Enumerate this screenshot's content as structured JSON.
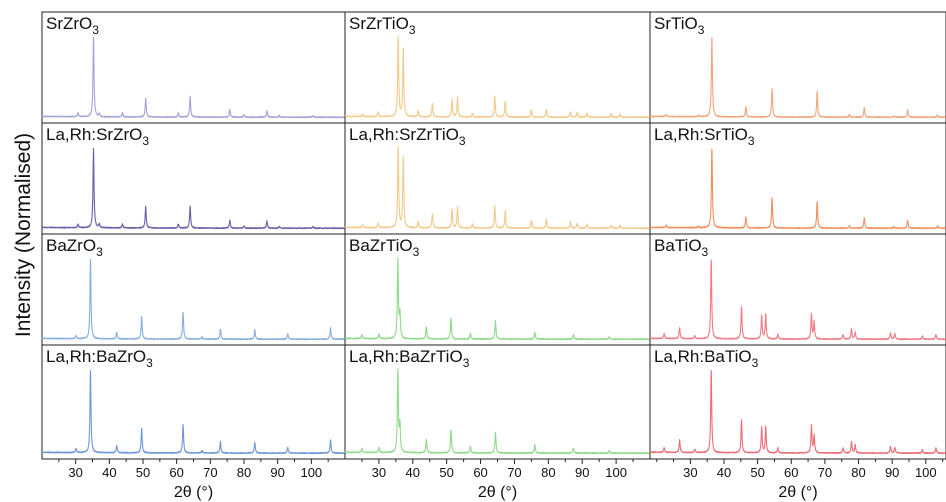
{
  "chart_data": {
    "type": "line",
    "ylabel": "Intensity (Normalised)",
    "xlabel": "2θ (°)",
    "xlim": [
      20,
      110
    ],
    "xticks": [
      30,
      40,
      50,
      60,
      70,
      80,
      90,
      100
    ],
    "grid": false,
    "columns": [
      {
        "xlabel": "2θ (°)",
        "xlim": [
          20,
          110
        ],
        "panels": [
          {
            "label": "SrZrO3",
            "label_base": "SrZrO",
            "label_sub": "3",
            "color": "#a3a3d6",
            "peaks": [
              [
                30.7,
                0.05
              ],
              [
                35.3,
                1.0
              ],
              [
                37.0,
                0.04
              ],
              [
                43.9,
                0.05
              ],
              [
                50.8,
                0.23
              ],
              [
                60.5,
                0.05
              ],
              [
                64.0,
                0.26
              ],
              [
                75.8,
                0.1
              ],
              [
                80.0,
                0.03
              ],
              [
                86.8,
                0.08
              ],
              [
                90.5,
                0.02
              ],
              [
                100.5,
                0.02
              ]
            ]
          },
          {
            "label": "La,Rh:SrZrO3",
            "label_base": "La,Rh:SrZrO",
            "label_sub": "3",
            "color": "#6a5fa8",
            "peaks": [
              [
                30.7,
                0.05
              ],
              [
                35.3,
                1.0
              ],
              [
                37.0,
                0.05
              ],
              [
                43.9,
                0.05
              ],
              [
                50.8,
                0.27
              ],
              [
                60.5,
                0.05
              ],
              [
                64.0,
                0.28
              ],
              [
                75.8,
                0.1
              ],
              [
                80.0,
                0.03
              ],
              [
                86.8,
                0.09
              ],
              [
                90.5,
                0.02
              ],
              [
                100.5,
                0.02
              ]
            ]
          },
          {
            "label": "BaZrO3",
            "label_base": "BaZrO",
            "label_sub": "3",
            "color": "#88aee0",
            "peaks": [
              [
                30.1,
                0.04
              ],
              [
                34.4,
                1.0
              ],
              [
                42.2,
                0.08
              ],
              [
                49.6,
                0.28
              ],
              [
                61.9,
                0.34
              ],
              [
                67.5,
                0.03
              ],
              [
                73.0,
                0.13
              ],
              [
                83.2,
                0.12
              ],
              [
                93.0,
                0.07
              ],
              [
                105.7,
                0.14
              ]
            ]
          },
          {
            "label": "La,Rh:BaZrO3",
            "label_base": "La,Rh:BaZrO",
            "label_sub": "3",
            "color": "#6f96dc",
            "peaks": [
              [
                30.1,
                0.05
              ],
              [
                34.4,
                1.0
              ],
              [
                42.2,
                0.09
              ],
              [
                49.6,
                0.3
              ],
              [
                61.9,
                0.35
              ],
              [
                67.5,
                0.03
              ],
              [
                73.0,
                0.14
              ],
              [
                83.2,
                0.13
              ],
              [
                93.0,
                0.07
              ],
              [
                105.7,
                0.16
              ]
            ]
          }
        ]
      },
      {
        "xlabel": "2θ (°)",
        "xlim": [
          20,
          110
        ],
        "panels": [
          {
            "label": "SrZrTiO3",
            "label_base": "SrZrTiO",
            "label_sub": "3",
            "color": "#f2c98a",
            "peaks": [
              [
                25.2,
                0.03
              ],
              [
                29.8,
                0.06
              ],
              [
                35.7,
                1.0
              ],
              [
                37.2,
                0.85
              ],
              [
                41.6,
                0.08
              ],
              [
                45.8,
                0.17
              ],
              [
                51.6,
                0.22
              ],
              [
                53.2,
                0.25
              ],
              [
                57.6,
                0.05
              ],
              [
                64.2,
                0.26
              ],
              [
                67.3,
                0.2
              ],
              [
                75.0,
                0.09
              ],
              [
                79.4,
                0.1
              ],
              [
                86.5,
                0.07
              ],
              [
                88.5,
                0.06
              ],
              [
                91.4,
                0.05
              ],
              [
                98.6,
                0.04
              ],
              [
                101.2,
                0.04
              ]
            ]
          },
          {
            "label": "La,Rh:SrZrTiO3",
            "label_base": "La,Rh:SrZrTiO",
            "label_sub": "3",
            "color": "#f2c98a",
            "peaks": [
              [
                25.2,
                0.04
              ],
              [
                29.8,
                0.06
              ],
              [
                35.7,
                1.0
              ],
              [
                37.2,
                0.88
              ],
              [
                41.6,
                0.08
              ],
              [
                45.8,
                0.18
              ],
              [
                51.6,
                0.24
              ],
              [
                53.2,
                0.26
              ],
              [
                57.6,
                0.05
              ],
              [
                64.2,
                0.28
              ],
              [
                67.3,
                0.22
              ],
              [
                75.0,
                0.1
              ],
              [
                79.4,
                0.11
              ],
              [
                86.5,
                0.08
              ],
              [
                88.5,
                0.06
              ],
              [
                91.4,
                0.05
              ],
              [
                98.6,
                0.04
              ],
              [
                101.2,
                0.04
              ]
            ]
          },
          {
            "label": "BaZrTiO3",
            "label_base": "BaZrTiO",
            "label_sub": "3",
            "color": "#8fd98a",
            "peaks": [
              [
                25.0,
                0.05
              ],
              [
                30.0,
                0.06
              ],
              [
                35.6,
                1.0
              ],
              [
                36.2,
                0.3
              ],
              [
                44.0,
                0.15
              ],
              [
                51.3,
                0.26
              ],
              [
                57.0,
                0.07
              ],
              [
                64.4,
                0.23
              ],
              [
                76.0,
                0.09
              ],
              [
                87.4,
                0.06
              ],
              [
                98.0,
                0.03
              ]
            ]
          },
          {
            "label": "La,Rh:BaZrTiO3",
            "label_base": "La,Rh:BaZrTiO",
            "label_sub": "3",
            "color": "#8fd98a",
            "peaks": [
              [
                25.0,
                0.05
              ],
              [
                30.0,
                0.06
              ],
              [
                35.6,
                1.0
              ],
              [
                36.2,
                0.32
              ],
              [
                44.0,
                0.16
              ],
              [
                51.3,
                0.28
              ],
              [
                57.0,
                0.08
              ],
              [
                64.4,
                0.25
              ],
              [
                76.0,
                0.1
              ],
              [
                87.4,
                0.06
              ],
              [
                98.0,
                0.03
              ]
            ]
          }
        ]
      },
      {
        "xlabel": "2θ (°)",
        "xlim": [
          18,
          106
        ],
        "panels": [
          {
            "label": "SrTiO3",
            "label_base": "SrTiO",
            "label_sub": "3",
            "color": "#f2a47c",
            "peaks": [
              [
                22.8,
                0.03
              ],
              [
                32.4,
                0.02
              ],
              [
                36.4,
                1.0
              ],
              [
                46.5,
                0.13
              ],
              [
                54.3,
                0.36
              ],
              [
                67.7,
                0.32
              ],
              [
                77.3,
                0.03
              ],
              [
                81.7,
                0.12
              ],
              [
                90.5,
                0.02
              ],
              [
                94.6,
                0.09
              ],
              [
                103.5,
                0.03
              ]
            ]
          },
          {
            "label": "La,Rh:SrTiO3",
            "label_base": "La,Rh:SrTiO",
            "label_sub": "3",
            "color": "#f08f5c",
            "peaks": [
              [
                22.8,
                0.03
              ],
              [
                32.4,
                0.02
              ],
              [
                36.4,
                1.0
              ],
              [
                46.5,
                0.14
              ],
              [
                54.3,
                0.38
              ],
              [
                67.7,
                0.33
              ],
              [
                77.3,
                0.03
              ],
              [
                81.7,
                0.13
              ],
              [
                90.5,
                0.02
              ],
              [
                94.6,
                0.1
              ],
              [
                103.5,
                0.03
              ]
            ]
          },
          {
            "label": "BaTiO3",
            "label_base": "BaTiO",
            "label_sub": "3",
            "color": "#ef7b85",
            "peaks": [
              [
                22.2,
                0.06
              ],
              [
                26.8,
                0.14
              ],
              [
                31.3,
                0.04
              ],
              [
                36.2,
                1.0
              ],
              [
                45.2,
                0.41
              ],
              [
                51.2,
                0.3
              ],
              [
                52.4,
                0.31
              ],
              [
                56.0,
                0.06
              ],
              [
                66.0,
                0.32
              ],
              [
                66.8,
                0.22
              ],
              [
                75.4,
                0.06
              ],
              [
                77.9,
                0.13
              ],
              [
                79.0,
                0.09
              ],
              [
                89.5,
                0.08
              ],
              [
                90.8,
                0.07
              ],
              [
                99.0,
                0.04
              ],
              [
                103.0,
                0.06
              ]
            ]
          },
          {
            "label": "La,Rh:BaTiO3",
            "label_base": "La,Rh:BaTiO",
            "label_sub": "3",
            "color": "#ea6e76",
            "peaks": [
              [
                22.2,
                0.06
              ],
              [
                26.8,
                0.15
              ],
              [
                31.3,
                0.04
              ],
              [
                36.2,
                1.0
              ],
              [
                45.2,
                0.4
              ],
              [
                51.2,
                0.31
              ],
              [
                52.4,
                0.32
              ],
              [
                56.0,
                0.06
              ],
              [
                66.0,
                0.33
              ],
              [
                66.8,
                0.22
              ],
              [
                75.4,
                0.06
              ],
              [
                77.9,
                0.14
              ],
              [
                79.0,
                0.1
              ],
              [
                89.5,
                0.08
              ],
              [
                90.8,
                0.07
              ],
              [
                99.0,
                0.04
              ],
              [
                103.0,
                0.06
              ]
            ]
          }
        ]
      }
    ]
  }
}
